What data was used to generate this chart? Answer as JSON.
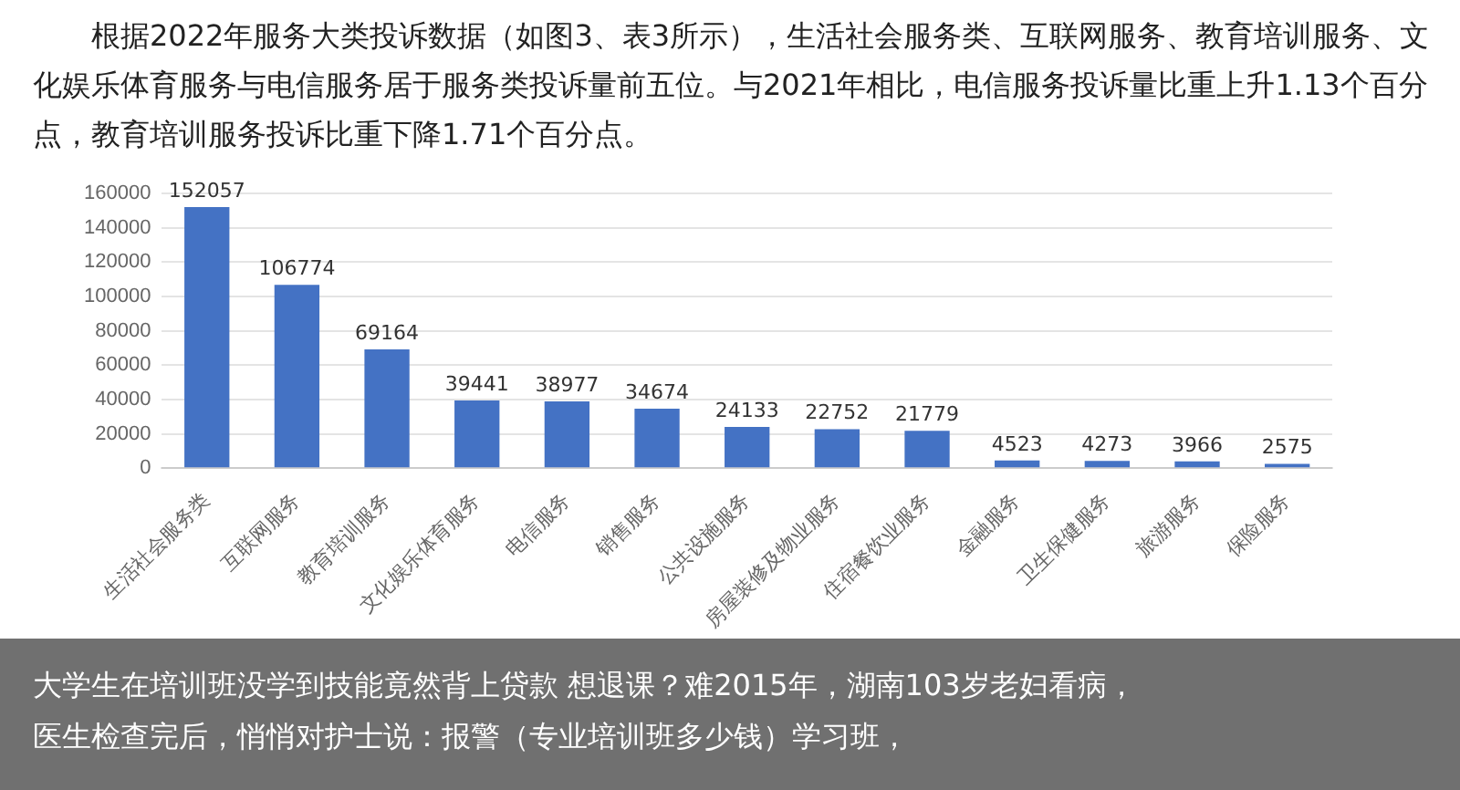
{
  "chart_data": {
    "type": "bar",
    "title": "根据2022年服务大类投诉数据（如图3、表3所示），生活社会服务类、互联网服务、教育培训服务、文化娱乐体育服务与电信服务居于服务类投诉量前五位。与2021年相比，电信服务投诉量比重上升1.13个百分点，教育培训服务投诉比重下降1.71个百分点。",
    "categories": [
      "生活社会服务类",
      "互联网服务",
      "教育培训服务",
      "文化娱乐体育服务",
      "电信服务",
      "销售服务",
      "公共设施服务",
      "房屋装修及物业服务",
      "住宿餐饮业服务",
      "金融服务",
      "卫生保健服务",
      "旅游服务",
      "保险服务"
    ],
    "values": [
      152057,
      106774,
      69164,
      39441,
      38977,
      34674,
      24133,
      22752,
      21779,
      4523,
      4273,
      3966,
      2575
    ],
    "color": "#4472c4",
    "ylim": [
      0,
      160000
    ],
    "yticks": [
      0,
      20000,
      40000,
      60000,
      80000,
      100000,
      120000,
      140000,
      160000
    ],
    "grid": "y",
    "data_labels": true,
    "annotations": [
      "大学生在培训班没学到技能竟然背上贷款 想退课？难2015年，湖南103岁老妇看病，",
      "医生检查完后，悄悄对护士说：报警（专业培训班多少钱）学习班，"
    ]
  }
}
